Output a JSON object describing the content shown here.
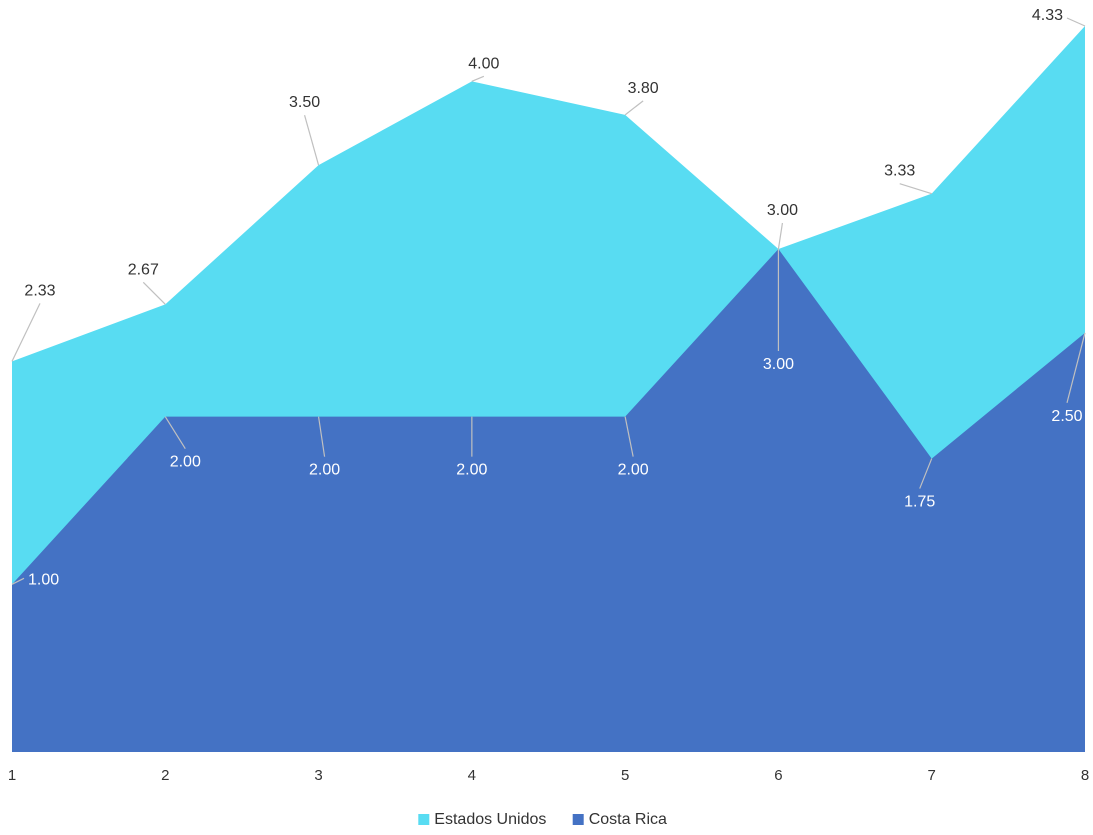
{
  "chart_data": {
    "type": "area",
    "x": [
      "1",
      "2",
      "3",
      "4",
      "5",
      "6",
      "7",
      "8"
    ],
    "series": [
      {
        "name": "Estados Unidos",
        "values": [
          2.33,
          2.67,
          3.5,
          4.0,
          3.8,
          3.0,
          3.33,
          4.33
        ],
        "labels": [
          "2.33",
          "2.67",
          "3.50",
          "4.00",
          "3.80",
          "3.00",
          "3.33",
          "4.33"
        ],
        "color": "#58dcf2"
      },
      {
        "name": "Costa Rica",
        "values": [
          1.0,
          2.0,
          2.0,
          2.0,
          2.0,
          3.0,
          1.75,
          2.5
        ],
        "labels": [
          "1.00",
          "2.00",
          "2.00",
          "2.00",
          "2.00",
          "3.00",
          "1.75",
          "2.50"
        ],
        "color": "#4472c4"
      }
    ],
    "ylim": [
      0,
      4.33
    ],
    "grid": false,
    "legend_position": "bottom-center"
  }
}
